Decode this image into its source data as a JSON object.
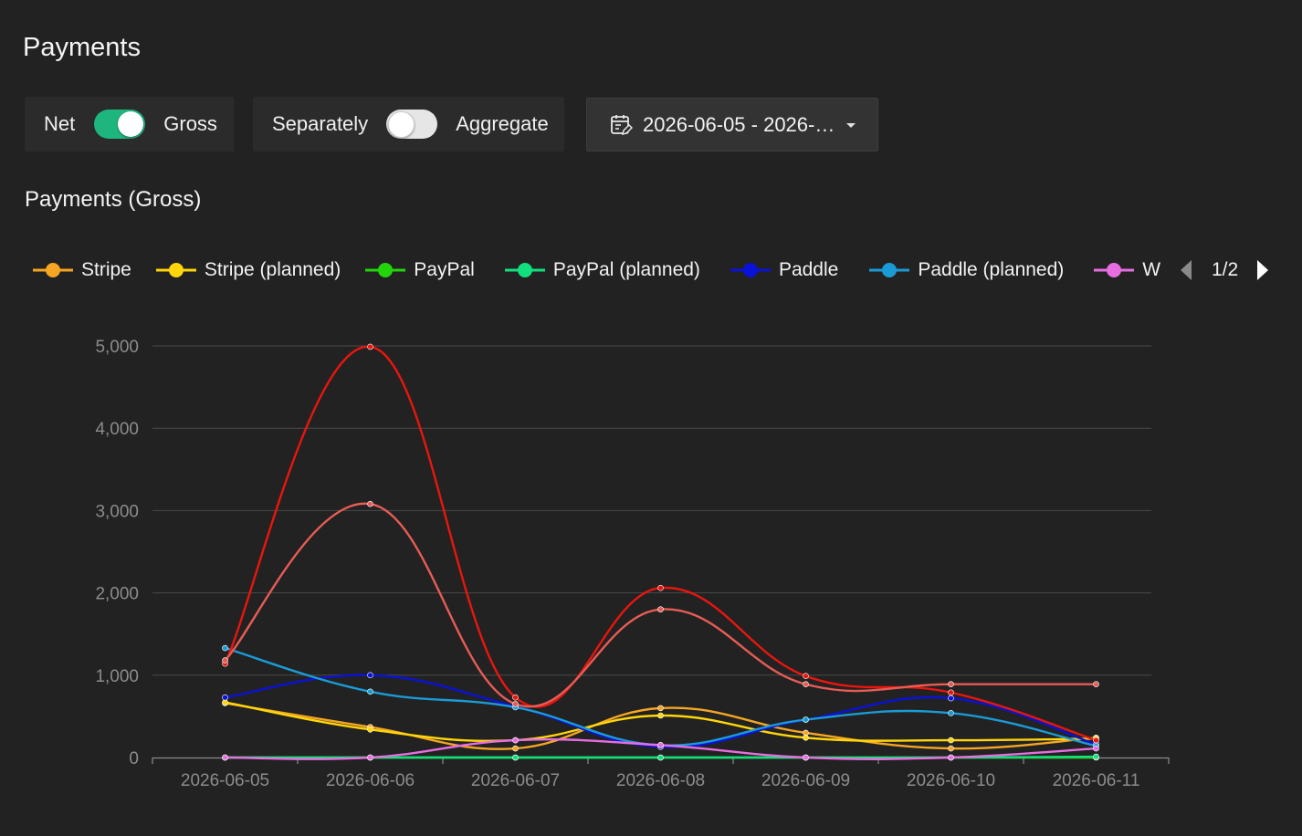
{
  "page": {
    "title": "Payments"
  },
  "controls": {
    "net_label": "Net",
    "gross_label": "Gross",
    "net_gross_on": true,
    "separately_label": "Separately",
    "aggregate_label": "Aggregate",
    "aggregate_on": false,
    "date_range": "2026-06-05 - 2026-…",
    "calendar_icon": "calendar-edit-icon",
    "dropdown_icon": "caret-down-icon"
  },
  "section": {
    "title": "Payments (Gross)"
  },
  "legend": {
    "items": [
      {
        "label": "Stripe",
        "color": "#f5a623"
      },
      {
        "label": "Stripe (planned)",
        "color": "#ffd60a"
      },
      {
        "label": "PayPal",
        "color": "#22d40a"
      },
      {
        "label": "PayPal (planned)",
        "color": "#12e07f"
      },
      {
        "label": "Paddle",
        "color": "#0a12d8"
      },
      {
        "label": "Paddle (planned)",
        "color": "#1b9bd6"
      },
      {
        "label": "W",
        "color": "#e66ee0"
      }
    ],
    "page": "1/2"
  },
  "chart_data": {
    "type": "line",
    "title": "Payments (Gross)",
    "categories": [
      "2026-06-05",
      "2026-06-06",
      "2026-06-07",
      "2026-06-08",
      "2026-06-09",
      "2026-06-10",
      "2026-06-11"
    ],
    "y_ticks": [
      "0",
      "1,000",
      "2,000",
      "3,000",
      "4,000",
      "5,000"
    ],
    "ylim": [
      0,
      5000
    ],
    "grid": true,
    "legend_position": "top",
    "series": [
      {
        "name": "Stripe",
        "color": "#f5a623",
        "values": [
          660,
          370,
          110,
          600,
          300,
          110,
          240
        ]
      },
      {
        "name": "Stripe (planned)",
        "color": "#ffd60a",
        "values": [
          670,
          340,
          210,
          510,
          240,
          210,
          230
        ]
      },
      {
        "name": "PayPal",
        "color": "#22d40a",
        "values": [
          0,
          0,
          0,
          0,
          0,
          0,
          0
        ]
      },
      {
        "name": "PayPal (planned)",
        "color": "#12e07f",
        "values": [
          0,
          0,
          0,
          0,
          0,
          0,
          10
        ]
      },
      {
        "name": "Paddle",
        "color": "#0a12d8",
        "values": [
          730,
          1000,
          620,
          130,
          460,
          720,
          160
        ]
      },
      {
        "name": "Paddle (planned)",
        "color": "#1b9bd6",
        "values": [
          1330,
          800,
          610,
          150,
          460,
          540,
          140
        ]
      },
      {
        "color": "#e66ee0",
        "values": [
          0,
          0,
          210,
          150,
          0,
          0,
          110
        ]
      },
      {
        "color": "#e8160e",
        "values": [
          1140,
          4990,
          730,
          2060,
          990,
          790,
          210
        ]
      },
      {
        "color": "#e85c55",
        "values": [
          1180,
          3080,
          650,
          1800,
          890,
          890,
          890
        ]
      }
    ]
  }
}
